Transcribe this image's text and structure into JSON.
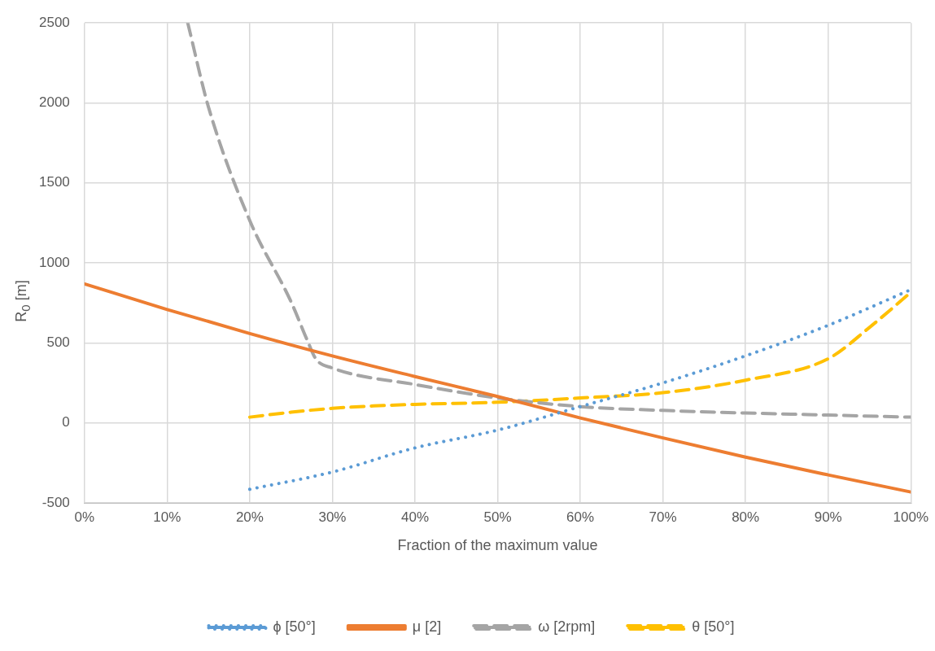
{
  "chart_data": {
    "type": "line",
    "xlabel": "Fraction of the maximum value",
    "ylabel": "R$_{0}$ [m]",
    "xlim": [
      0,
      100
    ],
    "xticks": [
      {
        "value": 0,
        "label": "0%"
      },
      {
        "value": 10,
        "label": "10%"
      },
      {
        "value": 20,
        "label": "20%"
      },
      {
        "value": 30,
        "label": "30%"
      },
      {
        "value": 40,
        "label": "40%"
      },
      {
        "value": 50,
        "label": "50%"
      },
      {
        "value": 60,
        "label": "60%"
      },
      {
        "value": 70,
        "label": "70%"
      },
      {
        "value": 80,
        "label": "80%"
      },
      {
        "value": 90,
        "label": "90%"
      },
      {
        "value": 100,
        "label": "100%"
      }
    ],
    "ylim": [
      -500,
      2500
    ],
    "yticks": [
      -500,
      0,
      500,
      1000,
      1500,
      2000,
      2500
    ],
    "grid": true,
    "legend": "bottom",
    "marker": "none",
    "series": [
      {
        "name": "ϕ [50°]",
        "color": "#5b9bd5",
        "line_style": "dotted",
        "x": [
          20,
          30,
          40,
          50,
          60,
          70,
          80,
          90,
          100
        ],
        "values": [
          -415,
          -307,
          -156,
          -45,
          102,
          250,
          419,
          610,
          833
        ]
      },
      {
        "name": "μ [2]",
        "color": "#ed7d31",
        "line_style": "solid",
        "x": [
          0,
          10,
          20,
          30,
          40,
          50,
          60,
          70,
          80,
          90,
          100
        ],
        "values": [
          869,
          709,
          559,
          419,
          290,
          165,
          31,
          -94,
          -214,
          -325,
          -432
        ]
      },
      {
        "name": "ω [2rpm]",
        "color": "#a5a5a5",
        "line_style": "dashed",
        "x": [
          12.5,
          15,
          20,
          25,
          27,
          28,
          30,
          40,
          50,
          60,
          70,
          80,
          90,
          100
        ],
        "values": [
          2500,
          1975,
          1265,
          757,
          512,
          400,
          343,
          240,
          156,
          102,
          78,
          62,
          49,
          36
        ]
      },
      {
        "name": "θ [50°]",
        "color": "#ffc000",
        "line_style": "dashed",
        "x": [
          20,
          25,
          30,
          35,
          40,
          50,
          60,
          70,
          80,
          90,
          95,
          100
        ],
        "values": [
          36,
          67,
          91,
          106,
          116,
          129,
          156,
          189,
          267,
          401,
          597,
          816
        ]
      }
    ]
  }
}
